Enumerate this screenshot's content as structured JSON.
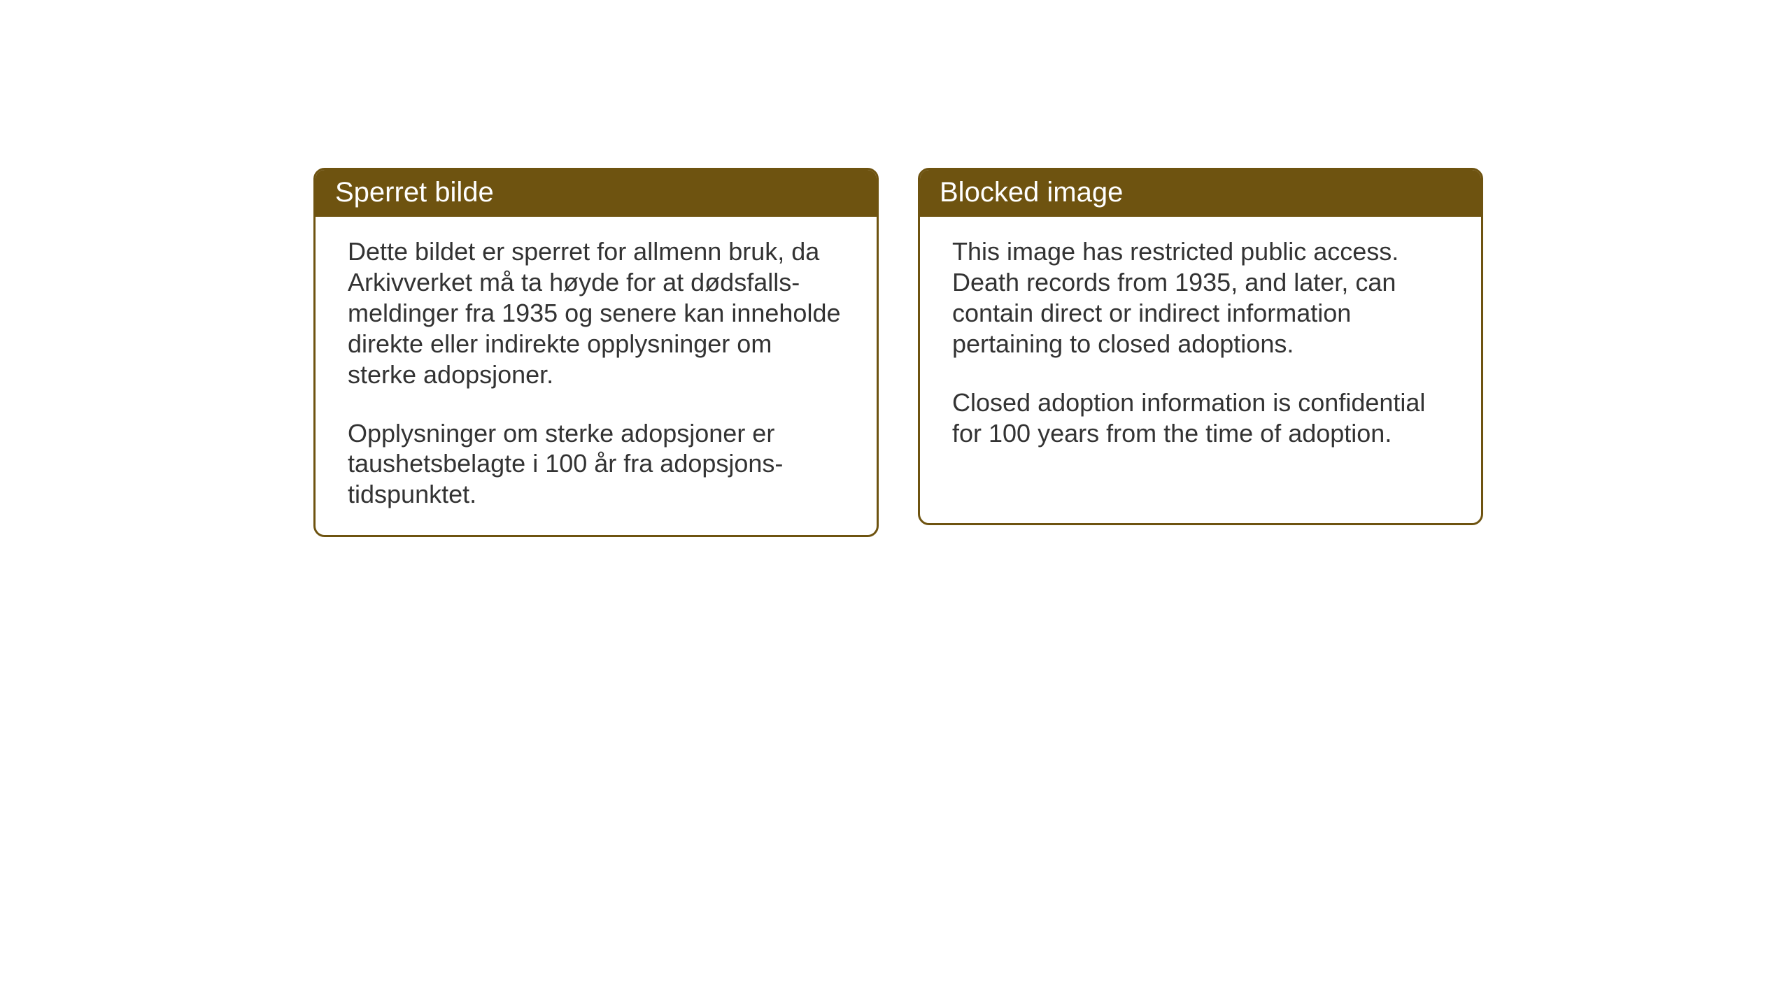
{
  "cards": {
    "left": {
      "title": "Sperret bilde",
      "paragraph1": "Dette bildet er sperret for allmenn bruk, da Arkivverket må ta høyde for at dødsfalls-meldinger fra 1935 og senere kan inneholde direkte eller indirekte opplysninger om sterke adopsjoner.",
      "paragraph2": "Opplysninger om sterke adopsjoner er taushetsbelagte i 100 år fra adopsjons-tidspunktet."
    },
    "right": {
      "title": "Blocked image",
      "paragraph1": "This image has restricted public access. Death records from 1935, and later, can contain direct or indirect information pertaining to closed adoptions.",
      "paragraph2": "Closed adoption information is confidential for 100 years from the time of adoption."
    }
  },
  "style": {
    "header_bg": "#6e5310",
    "header_text": "#ffffff",
    "border_color": "#6e5310",
    "body_text": "#333333",
    "page_bg": "#ffffff",
    "title_fontsize": 40,
    "body_fontsize": 36,
    "border_radius": 16,
    "border_width": 3
  }
}
